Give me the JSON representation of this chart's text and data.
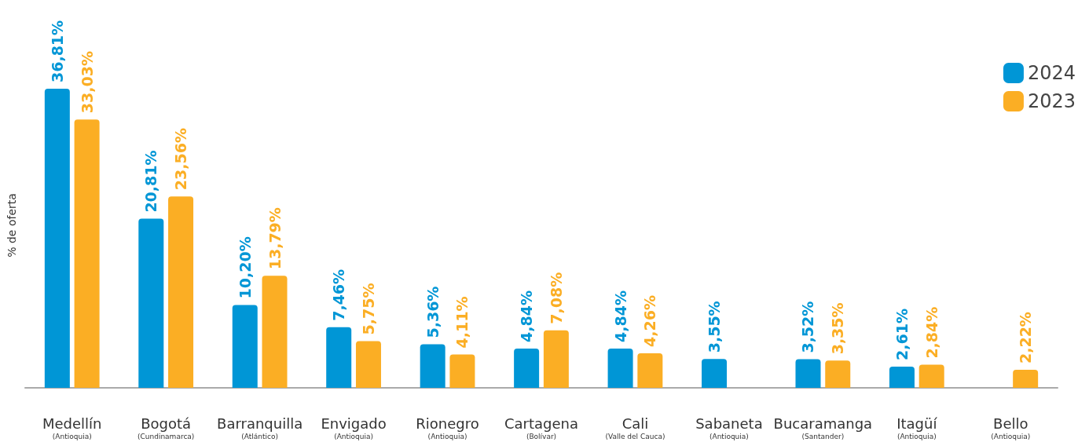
{
  "chart_data": {
    "type": "bar",
    "ylabel": "% de oferta",
    "categories": [
      "Medellín\n(Antioquia)",
      "Bogotá\n(Cundinamarca)",
      "Barranquilla\n(Atlántico)",
      "Envigado\n(Antioquia)",
      "Rionegro\n(Antioquia)",
      "Cartagena\n(Bolívar)",
      "Cali\n(Valle del Cauca)",
      "Sabaneta\n(Antioquia)",
      "Bucaramanga\n(Santander)",
      "Itagüí\n(Antioquia)",
      "Bello\n(Antioquia)"
    ],
    "series": [
      {
        "name": "2024",
        "color": "#0096d6",
        "values": [
          36.81,
          20.81,
          10.2,
          7.46,
          5.36,
          4.84,
          4.84,
          3.55,
          3.52,
          2.61,
          null
        ],
        "value_labels": [
          "36,81%",
          "20,81%",
          "10,20%",
          "7,46%",
          "5,36%",
          "4,84%",
          "4,84%",
          "3,55%",
          "3,52%",
          "2,61%",
          null
        ]
      },
      {
        "name": "2023",
        "color": "#fbae24",
        "values": [
          33.03,
          23.56,
          13.79,
          5.75,
          4.11,
          7.08,
          4.26,
          null,
          3.35,
          2.84,
          2.22
        ],
        "value_labels": [
          "33,03%",
          "23,56%",
          "13,79%",
          "5,75%",
          "4,11%",
          "7,08%",
          "4,26%",
          null,
          "3,35%",
          "2,84%",
          "2,22%"
        ]
      }
    ],
    "legend": "top right",
    "grid": false
  }
}
